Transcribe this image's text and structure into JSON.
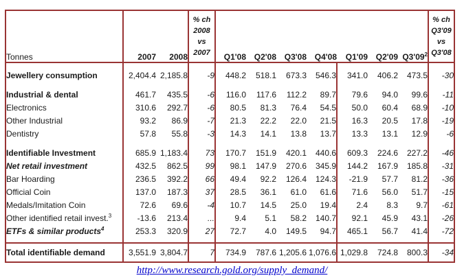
{
  "colors": {
    "table_border": "#993333",
    "link_blue": "#0000cc"
  },
  "chart_data": {
    "type": "table",
    "unit_label": "Tonnes",
    "header": {
      "years": [
        "2007",
        "2008"
      ],
      "pch08_lines": [
        "% ch",
        "2008",
        "vs",
        "2007"
      ],
      "quarters": [
        "Q1'08",
        "Q2'08",
        "Q3'08",
        "Q4'08",
        "Q1'09",
        "Q2'09",
        "Q3'09"
      ],
      "q309_sup": "2",
      "pch09_lines": [
        "% ch",
        "Q3'09",
        "vs",
        "Q3'08"
      ]
    },
    "rows": [
      {
        "label": "Jewellery consumption",
        "style": "bold",
        "indent": 0,
        "gap_before": true,
        "values": [
          "2,404.4",
          "2,185.8",
          "-9",
          "448.2",
          "518.1",
          "673.3",
          "546.3",
          "341.0",
          "406.2",
          "473.5",
          "-30"
        ]
      },
      {
        "label": "Industrial & dental",
        "style": "bold",
        "indent": 0,
        "gap_before": true,
        "values": [
          "461.7",
          "435.5",
          "-6",
          "116.0",
          "117.6",
          "112.2",
          "89.7",
          "79.6",
          "94.0",
          "99.6",
          "-11"
        ]
      },
      {
        "label": "Electronics",
        "style": "normal",
        "indent": 1,
        "values": [
          "310.6",
          "292.7",
          "-6",
          "80.5",
          "81.3",
          "76.4",
          "54.5",
          "50.0",
          "60.4",
          "68.9",
          "-10"
        ]
      },
      {
        "label": "Other Industrial",
        "style": "normal",
        "indent": 1,
        "values": [
          "93.2",
          "86.9",
          "-7",
          "21.3",
          "22.2",
          "22.0",
          "21.5",
          "16.3",
          "20.5",
          "17.8",
          "-19"
        ]
      },
      {
        "label": "Dentistry",
        "style": "normal",
        "indent": 1,
        "values": [
          "57.8",
          "55.8",
          "-3",
          "14.3",
          "14.1",
          "13.8",
          "13.7",
          "13.3",
          "13.1",
          "12.9",
          "-6"
        ]
      },
      {
        "label": "Identifiable Investment",
        "style": "bold",
        "indent": 0,
        "gap_before": true,
        "values": [
          "685.9",
          "1,183.4",
          "73",
          "170.7",
          "151.9",
          "420.1",
          "440.6",
          "609.3",
          "224.6",
          "227.2",
          "-46"
        ]
      },
      {
        "label": "Net retail investment",
        "style": "bolditalic",
        "indent": 1,
        "values": [
          "432.5",
          "862.5",
          "99",
          "98.1",
          "147.9",
          "270.6",
          "345.9",
          "144.2",
          "167.9",
          "185.8",
          "-31"
        ]
      },
      {
        "label": "Bar Hoarding",
        "style": "normal",
        "indent": 2,
        "values": [
          "236.5",
          "392.2",
          "66",
          "49.4",
          "92.2",
          "126.4",
          "124.3",
          "-21.9",
          "57.7",
          "81.2",
          "-36"
        ]
      },
      {
        "label": "Official Coin",
        "style": "normal",
        "indent": 2,
        "values": [
          "137.0",
          "187.3",
          "37",
          "28.5",
          "36.1",
          "61.0",
          "61.6",
          "71.6",
          "56.0",
          "51.7",
          "-15"
        ]
      },
      {
        "label": "Medals/Imitation Coin",
        "style": "normal",
        "indent": 2,
        "values": [
          "72.6",
          "69.6",
          "-4",
          "10.7",
          "14.5",
          "25.0",
          "19.4",
          "2.4",
          "8.3",
          "9.7",
          "-61"
        ]
      },
      {
        "label": "Other identified retail invest.",
        "sup": "3",
        "style": "normal",
        "indent": 2,
        "values": [
          "-13.6",
          "213.4",
          "...",
          "9.4",
          "5.1",
          "58.2",
          "140.7",
          "92.1",
          "45.9",
          "43.1",
          "-26"
        ]
      },
      {
        "label": "ETFs & similar products",
        "sup": "4",
        "style": "bolditalic",
        "indent": 1,
        "values": [
          "253.3",
          "320.9",
          "27",
          "72.7",
          "4.0",
          "149.5",
          "94.7",
          "465.1",
          "56.7",
          "41.4",
          "-72"
        ]
      }
    ],
    "total_row": {
      "label": "Total identifiable demand",
      "style": "bold",
      "indent": 0,
      "values": [
        "3,551.9",
        "3,804.7",
        "7",
        "734.9",
        "787.6",
        "1,205.6",
        "1,076.6",
        "1,029.8",
        "724.8",
        "800.3",
        "-34"
      ]
    }
  },
  "footer": {
    "source_link": "http://www.research.gold.org/supply_demand/"
  }
}
